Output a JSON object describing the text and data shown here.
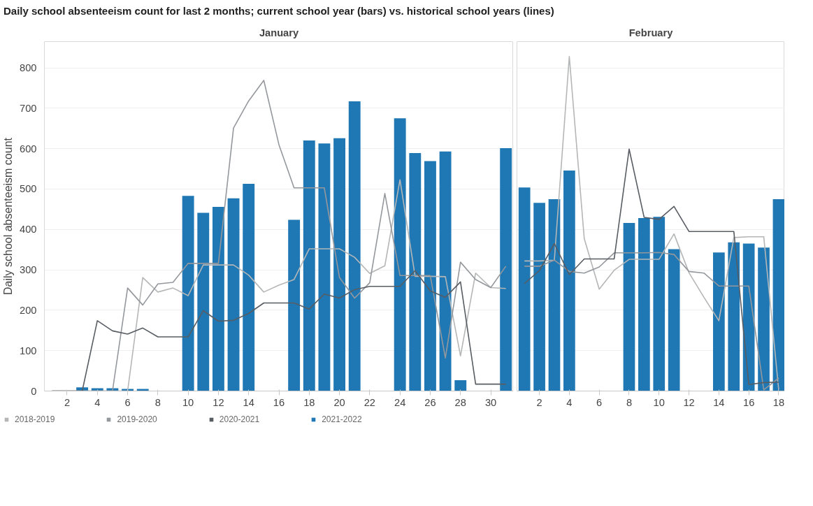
{
  "chart_data": [
    {
      "type": "bar",
      "title": "Daily school absenteeism count for last 2 months; current school year (bars) vs. historical school years (lines)",
      "subtitle": "January",
      "ylabel": "Daily school absenteeism count",
      "x": [
        1,
        2,
        3,
        4,
        5,
        6,
        7,
        8,
        9,
        10,
        11,
        12,
        13,
        14,
        15,
        16,
        17,
        18,
        19,
        20,
        21,
        22,
        23,
        24,
        25,
        26,
        27,
        28,
        29,
        30,
        31
      ],
      "xlim": [
        0.5,
        31.5
      ],
      "xticks": [
        2,
        4,
        6,
        8,
        10,
        12,
        14,
        16,
        18,
        20,
        22,
        24,
        26,
        28,
        30
      ],
      "ylim": [
        0,
        865
      ],
      "yticks": [
        0,
        100,
        200,
        300,
        400,
        500,
        600,
        700,
        800
      ],
      "grid": "y",
      "legend": "bottom",
      "series": [
        {
          "name": "2018-2019",
          "type": "line",
          "color": "#b4b6b7",
          "values": [
            0,
            0,
            0,
            0,
            0,
            0,
            281,
            245,
            255,
            236,
            312,
            312,
            312,
            287,
            245,
            262,
            276,
            352,
            352,
            352,
            331,
            291,
            310,
            523,
            284,
            284,
            283,
            87,
            292,
            256,
            254
          ]
        },
        {
          "name": "2019-2020",
          "type": "line",
          "color": "#94979c",
          "values": [
            0,
            0,
            0,
            0,
            0,
            255,
            213,
            265,
            269,
            316,
            316,
            316,
            651,
            718,
            769,
            610,
            503,
            503,
            503,
            281,
            230,
            268,
            489,
            286,
            286,
            286,
            82,
            319,
            276,
            256,
            309
          ]
        },
        {
          "name": "2020-2021",
          "type": "line",
          "color": "#585c63",
          "values": [
            0,
            0,
            0,
            174,
            149,
            141,
            156,
            134,
            134,
            134,
            199,
            173,
            175,
            192,
            218,
            218,
            218,
            203,
            240,
            230,
            251,
            259,
            259,
            259,
            298,
            248,
            232,
            270,
            17,
            17,
            17
          ]
        },
        {
          "name": "2021-2022",
          "color": "#1f78b4",
          "values": [
            null,
            null,
            9,
            7,
            7,
            5,
            5,
            null,
            null,
            483,
            441,
            456,
            477,
            513,
            null,
            null,
            424,
            620,
            613,
            626,
            717,
            null,
            null,
            675,
            589,
            569,
            593,
            27,
            null,
            null,
            601
          ]
        }
      ]
    },
    {
      "type": "bar",
      "subtitle": "February",
      "x": [
        1,
        2,
        3,
        4,
        5,
        6,
        7,
        8,
        9,
        10,
        11,
        12,
        13,
        14,
        15,
        16,
        17,
        18
      ],
      "xlim": [
        0.5,
        18.4
      ],
      "xticks": [
        2,
        4,
        6,
        8,
        10,
        12,
        14,
        16,
        18
      ],
      "ylim": [
        0,
        865
      ],
      "yticks": [
        0,
        100,
        200,
        300,
        400,
        500,
        600,
        700,
        800
      ],
      "grid": "y",
      "tick_labels": "x",
      "series": [
        {
          "type": "line",
          "color": "#b4b6b7",
          "values": [
            322,
            322,
            324,
            828,
            377,
            252,
            299,
            326,
            326,
            326,
            389,
            293,
            232,
            174,
            380,
            382,
            382,
            3
          ]
        },
        {
          "type": "line",
          "color": "#94979c",
          "values": [
            309,
            309,
            324,
            296,
            292,
            307,
            342,
            342,
            342,
            343,
            338,
            296,
            292,
            260,
            260,
            260,
            3,
            32
          ]
        },
        {
          "type": "line",
          "color": "#585c63",
          "values": [
            266,
            298,
            365,
            288,
            327,
            327,
            327,
            599,
            430,
            425,
            457,
            395,
            395,
            395,
            395,
            16,
            21,
            22
          ]
        },
        {
          "color": "#1f78b4",
          "values": [
            504,
            466,
            475,
            546,
            null,
            null,
            null,
            416,
            428,
            431,
            351,
            null,
            null,
            343,
            368,
            365,
            355,
            475
          ]
        }
      ]
    }
  ]
}
